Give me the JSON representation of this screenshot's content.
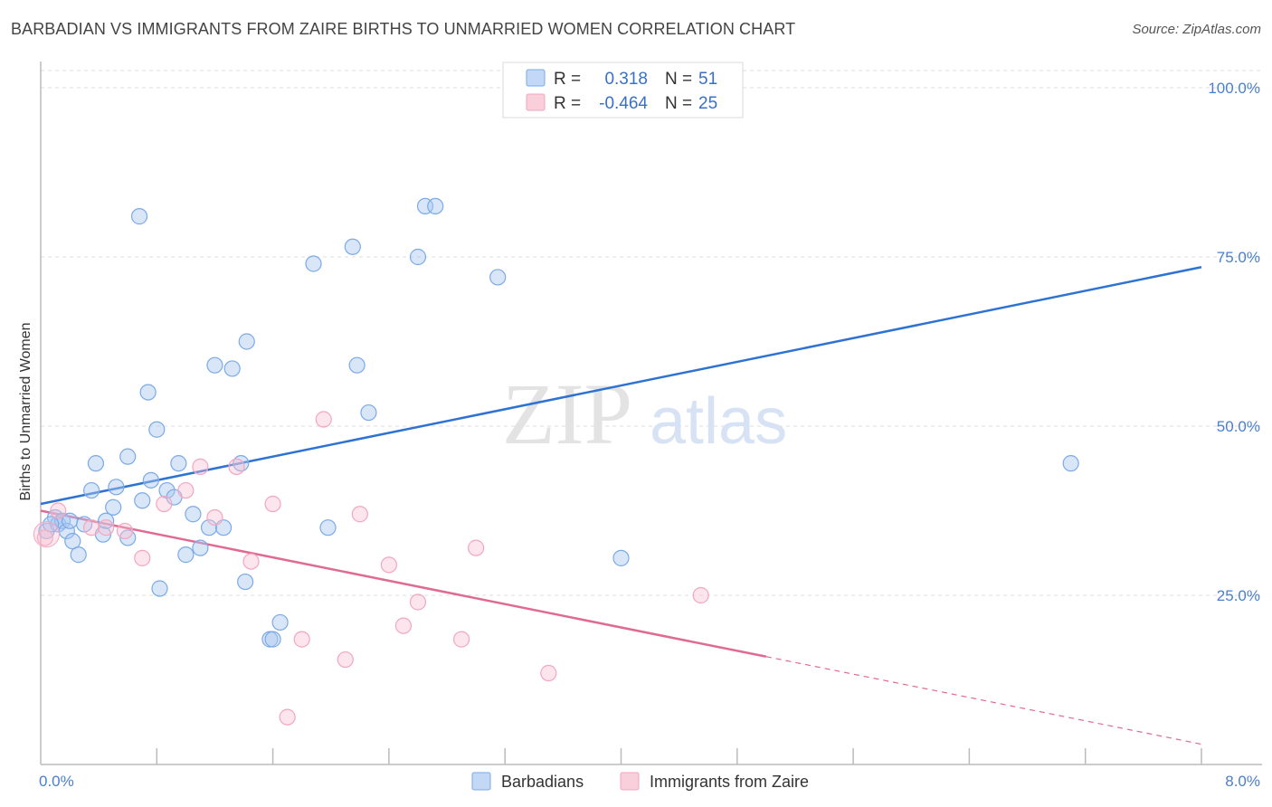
{
  "title": "BARBADIAN VS IMMIGRANTS FROM ZAIRE BIRTHS TO UNMARRIED WOMEN CORRELATION CHART",
  "source": "Source: ZipAtlas.com",
  "watermark": {
    "zip": "ZIP",
    "atlas": "atlas"
  },
  "chart_data": {
    "type": "scatter",
    "title": "BARBADIAN VS IMMIGRANTS FROM ZAIRE BIRTHS TO UNMARRIED WOMEN CORRELATION CHART",
    "xlabel": "",
    "ylabel": "Births to Unmarried Women",
    "xlim": [
      0,
      8
    ],
    "ylim": [
      0,
      100
    ],
    "x_tick_labels": {
      "min": "0.0%",
      "max": "8.0%"
    },
    "y_ticks": [
      {
        "value": 25,
        "label": "25.0%"
      },
      {
        "value": 50,
        "label": "50.0%"
      },
      {
        "value": 75,
        "label": "75.0%"
      },
      {
        "value": 100,
        "label": "100.0%"
      }
    ],
    "grid": true,
    "legend_placement": "top-center",
    "stats": [
      {
        "r_label": "R =",
        "r": "0.318",
        "n_label": "N =",
        "n": "51"
      },
      {
        "r_label": "R =",
        "r": "-0.464",
        "n_label": "N =",
        "n": "25"
      }
    ],
    "series": [
      {
        "name": "Barbadians",
        "color": "#7aaae8",
        "line_color": "#2f73d2",
        "trend": {
          "x": [
            0,
            8
          ],
          "y": [
            38.5,
            73.5
          ],
          "solid_to": 8
        },
        "points": [
          [
            0.04,
            34.5
          ],
          [
            0.1,
            36.5
          ],
          [
            0.12,
            35.5
          ],
          [
            0.15,
            36
          ],
          [
            0.18,
            34.5
          ],
          [
            0.22,
            33
          ],
          [
            0.26,
            31
          ],
          [
            0.3,
            35.5
          ],
          [
            0.35,
            40.5
          ],
          [
            0.38,
            44.5
          ],
          [
            0.43,
            34
          ],
          [
            0.45,
            36
          ],
          [
            0.5,
            38
          ],
          [
            0.52,
            41
          ],
          [
            0.6,
            33.5
          ],
          [
            0.6,
            45.5
          ],
          [
            0.68,
            81
          ],
          [
            0.7,
            39
          ],
          [
            0.74,
            55
          ],
          [
            0.76,
            42
          ],
          [
            0.8,
            49.5
          ],
          [
            0.82,
            26
          ],
          [
            0.87,
            40.5
          ],
          [
            0.92,
            39.5
          ],
          [
            0.95,
            44.5
          ],
          [
            1.0,
            31
          ],
          [
            1.05,
            37
          ],
          [
            1.1,
            32
          ],
          [
            1.16,
            35
          ],
          [
            1.2,
            59
          ],
          [
            1.26,
            35
          ],
          [
            1.32,
            58.5
          ],
          [
            1.38,
            44.5
          ],
          [
            1.41,
            27
          ],
          [
            1.42,
            62.5
          ],
          [
            1.58,
            18.5
          ],
          [
            1.6,
            18.5
          ],
          [
            1.65,
            21
          ],
          [
            1.88,
            74
          ],
          [
            1.98,
            35
          ],
          [
            2.15,
            76.5
          ],
          [
            2.18,
            59
          ],
          [
            2.26,
            52
          ],
          [
            2.6,
            75
          ],
          [
            2.65,
            82.5
          ],
          [
            2.72,
            82.5
          ],
          [
            3.15,
            72
          ],
          [
            4.0,
            30.5
          ],
          [
            7.1,
            44.5
          ],
          [
            0.07,
            35.5
          ],
          [
            0.2,
            36
          ]
        ]
      },
      {
        "name": "Immigrants from Zaire",
        "color": "#f3a6bf",
        "line_color": "#e06a94",
        "trend": {
          "x": [
            0,
            8
          ],
          "y": [
            37.5,
            3.0
          ],
          "solid_to": 5.0
        },
        "points": [
          [
            0.03,
            33.5
          ],
          [
            0.12,
            37.5
          ],
          [
            0.35,
            35
          ],
          [
            0.45,
            35
          ],
          [
            0.58,
            34.5
          ],
          [
            0.7,
            30.5
          ],
          [
            0.85,
            38.5
          ],
          [
            1.0,
            40.5
          ],
          [
            1.1,
            44
          ],
          [
            1.2,
            36.5
          ],
          [
            1.35,
            44
          ],
          [
            1.45,
            30
          ],
          [
            1.6,
            38.5
          ],
          [
            1.7,
            7
          ],
          [
            1.8,
            18.5
          ],
          [
            1.95,
            51
          ],
          [
            2.1,
            15.5
          ],
          [
            2.2,
            37
          ],
          [
            2.4,
            29.5
          ],
          [
            2.5,
            20.5
          ],
          [
            2.6,
            24
          ],
          [
            2.9,
            18.5
          ],
          [
            3.0,
            32
          ],
          [
            3.5,
            13.5
          ],
          [
            4.55,
            25
          ]
        ]
      }
    ]
  }
}
